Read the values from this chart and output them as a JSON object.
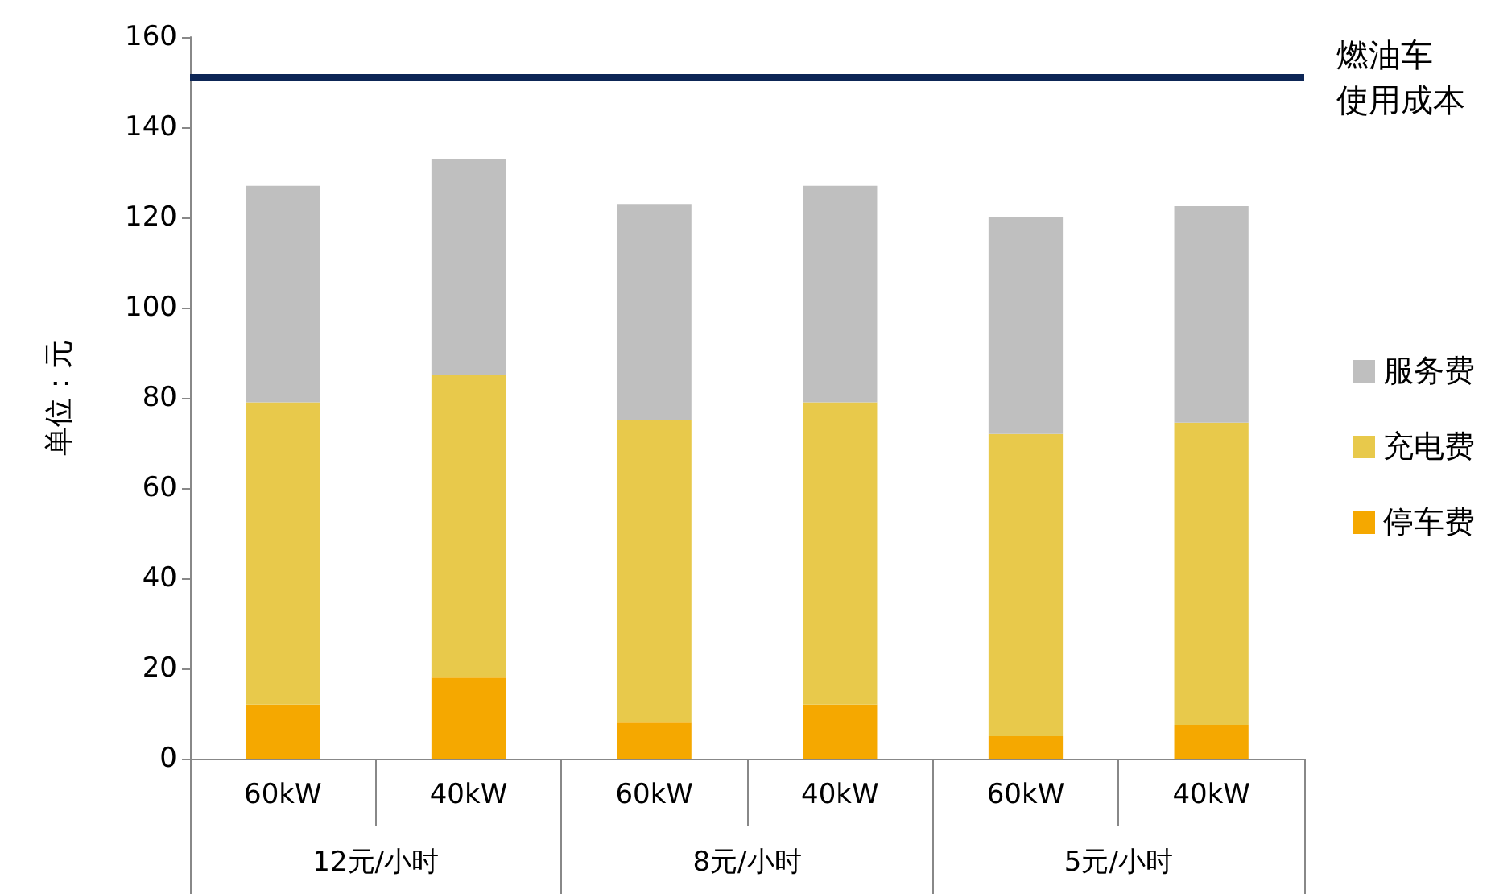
{
  "chart_data": {
    "type": "bar",
    "stacked": true,
    "ylabel": "单位：元",
    "categories": [
      "60kW",
      "40kW",
      "60kW",
      "40kW",
      "60kW",
      "40kW"
    ],
    "annotations": [
      "12元/小时",
      "8元/小时",
      "5元/小时"
    ],
    "series": [
      {
        "name": "停车费",
        "color": "#f5a800",
        "values": [
          12,
          18,
          8,
          12,
          5,
          7.5
        ]
      },
      {
        "name": "充电费",
        "color": "#e8c94b",
        "values": [
          67,
          67,
          67,
          67,
          67,
          67
        ]
      },
      {
        "name": "服务费",
        "color": "#bfbfbf",
        "values": [
          48,
          48,
          48,
          48,
          48,
          48
        ]
      }
    ],
    "ylim": [
      0,
      160
    ],
    "yticks": [
      0,
      20,
      40,
      60,
      80,
      100,
      120,
      140,
      160
    ],
    "grid": false,
    "legend": "right",
    "ref_lines": [
      {
        "axis": "y",
        "value": 151,
        "label": "燃油车使用成本",
        "color": "#0d2656"
      }
    ]
  }
}
